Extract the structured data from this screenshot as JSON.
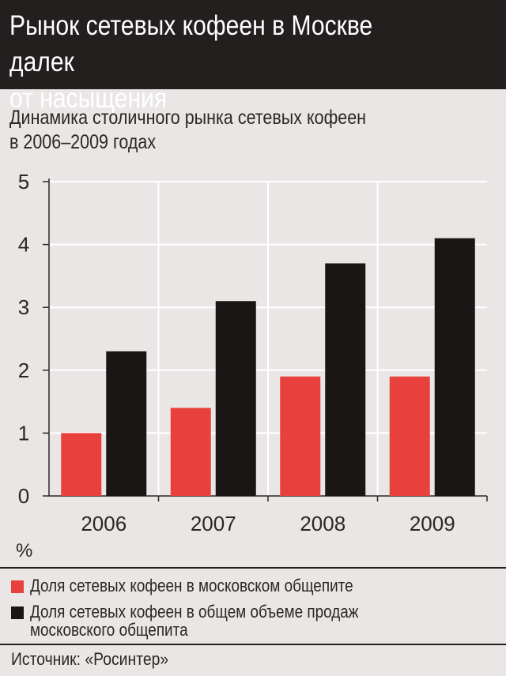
{
  "header": {
    "title": "Рынок сетевых кофеен в Москве далек\nот насыщения"
  },
  "subtitle": "Динамика столичного рынка сетевых кофеен\nв 2006–2009 годах",
  "chart_data": {
    "type": "bar",
    "categories": [
      "2006",
      "2007",
      "2008",
      "2009"
    ],
    "series": [
      {
        "name": "Доля сетевых кофеен в московском общепите",
        "values": [
          1.0,
          1.4,
          1.9,
          1.9
        ],
        "color": "#e8403c"
      },
      {
        "name": "Доля сетевых кофеен в общем объеме продаж московского общепита",
        "values": [
          2.3,
          3.1,
          3.7,
          4.1
        ],
        "color": "#1a1616"
      }
    ],
    "yticks": [
      "0",
      "1",
      "2",
      "3",
      "4",
      "5"
    ],
    "ylim": [
      0,
      5
    ],
    "ylabel": "%",
    "grid": true,
    "legend": "bottom"
  },
  "legend": [
    {
      "label": "Доля сетевых кофеен в московском общепите",
      "color": "#e8403c"
    },
    {
      "label": "Доля сетевых кофеен в общем объеме продаж\nмосковского общепита",
      "color": "#1a1616"
    }
  ],
  "source": "Источник: «Росинтер»"
}
